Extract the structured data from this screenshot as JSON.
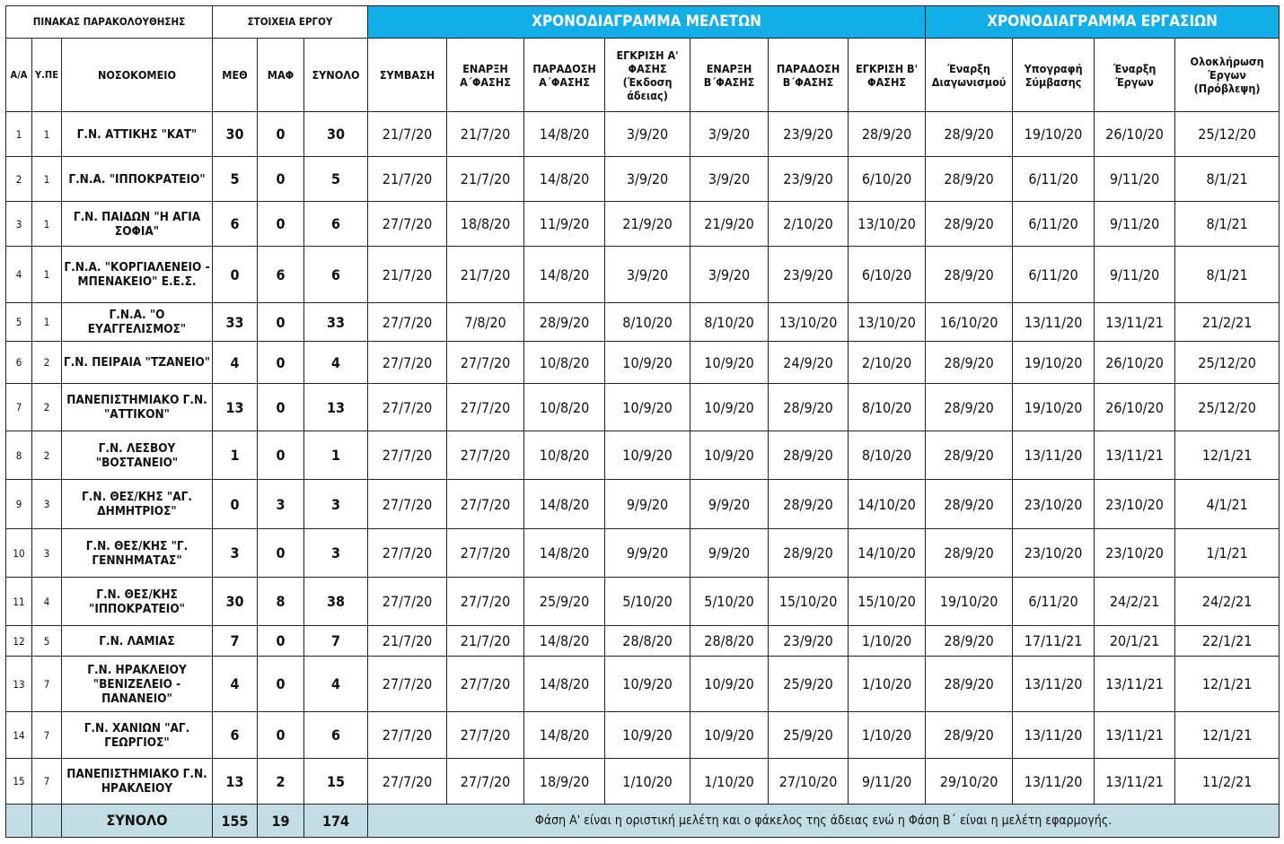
{
  "header": {
    "monitoring": "ΠΙΝΑΚΑΣ ΠΑΡΑΚΟΛΟΥΘΗΣΗΣ",
    "project": "ΣΤΟΙΧΕΙΑ ΕΡΓΟΥ",
    "studies": "ΧΡΟΝΟΔΙΑΓΡΑΜΜΑ ΜΕΛΕΤΩΝ",
    "works": "ΧΡΟΝΟΔΙΑΓΡΑΜΜΑ ΕΡΓΑΣΙΩΝ",
    "accent_color": "#12aee8"
  },
  "columns": [
    "Α/Α",
    "Υ.ΠΕ",
    "ΝΟΣΟΚΟΜΕΙΟ",
    "ΜΕΘ",
    "ΜΑΦ",
    "ΣΥΝΟΛΟ",
    "ΣΥΜΒΑΣΗ",
    "ΕΝΑΡΞΗ Α΄ΦΑΣΗΣ",
    "ΠΑΡΑΔΟΣΗ Α΄ΦΑΣΗΣ",
    "ΕΓΚΡΙΣΗ Α' ΦΑΣΗΣ (Έκδοση άδειας)",
    "ΕΝΑΡΞΗ Β΄ΦΑΣΗΣ",
    "ΠΑΡΑΔΟΣΗ Β΄ΦΑΣΗΣ",
    "ΕΓΚΡΙΣΗ Β' ΦΑΣΗΣ",
    "Έναρξη Διαγωνισμού",
    "Υπογραφή Σύμβασης",
    "Έναρξη Έργων",
    "Ολοκλήρωση Έργων (Πρόβλεψη)"
  ],
  "rows": [
    [
      "1",
      "1",
      "Γ.Ν. ΑΤΤΙΚΗΣ \"ΚΑΤ\"",
      "30",
      "0",
      "30",
      "21/7/20",
      "21/7/20",
      "14/8/20",
      "3/9/20",
      "3/9/20",
      "23/9/20",
      "28/9/20",
      "28/9/20",
      "19/10/20",
      "26/10/20",
      "25/12/20"
    ],
    [
      "2",
      "1",
      "Γ.Ν.Α. \"ΙΠΠΟΚΡΑΤΕΙΟ\"",
      "5",
      "0",
      "5",
      "21/7/20",
      "21/7/20",
      "14/8/20",
      "3/9/20",
      "3/9/20",
      "23/9/20",
      "6/10/20",
      "28/9/20",
      "6/11/20",
      "9/11/20",
      "8/1/21"
    ],
    [
      "3",
      "1",
      "Γ.Ν. ΠΑΙΔΩΝ \"Η ΑΓΙΑ ΣΟΦΙΑ\"",
      "6",
      "0",
      "6",
      "27/7/20",
      "18/8/20",
      "11/9/20",
      "21/9/20",
      "21/9/20",
      "2/10/20",
      "13/10/20",
      "28/9/20",
      "6/11/20",
      "9/11/20",
      "8/1/21"
    ],
    [
      "4",
      "1",
      "Γ.Ν.Α. \"ΚΟΡΓΙΑΛΕΝΕΙΟ - ΜΠΕΝΑΚΕΙΟ\" Ε.Ε.Σ.",
      "0",
      "6",
      "6",
      "21/7/20",
      "21/7/20",
      "14/8/20",
      "3/9/20",
      "3/9/20",
      "23/9/20",
      "6/10/20",
      "28/9/20",
      "6/11/20",
      "9/11/20",
      "8/1/21"
    ],
    [
      "5",
      "1",
      "Γ.Ν.Α. \"Ο ΕΥΑΓΓΕΛΙΣΜΟΣ\"",
      "33",
      "0",
      "33",
      "27/7/20",
      "7/8/20",
      "28/9/20",
      "8/10/20",
      "8/10/20",
      "13/10/20",
      "13/10/20",
      "16/10/20",
      "13/11/20",
      "13/11/21",
      "21/2/21"
    ],
    [
      "6",
      "2",
      "Γ.Ν. ΠΕΙΡΑΙΑ \"ΤΖΑΝΕΙΟ\"",
      "4",
      "0",
      "4",
      "27/7/20",
      "27/7/20",
      "10/8/20",
      "10/9/20",
      "10/9/20",
      "24/9/20",
      "2/10/20",
      "28/9/20",
      "19/10/20",
      "26/10/20",
      "25/12/20"
    ],
    [
      "7",
      "2",
      "ΠΑΝΕΠΙΣΤΗΜΙΑΚΟ Γ.Ν. \"ΑΤΤΙΚΟΝ\"",
      "13",
      "0",
      "13",
      "27/7/20",
      "27/7/20",
      "10/8/20",
      "10/9/20",
      "10/9/20",
      "28/9/20",
      "8/10/20",
      "28/9/20",
      "19/10/20",
      "26/10/20",
      "25/12/20"
    ],
    [
      "8",
      "2",
      "Γ.Ν. ΛΕΣΒΟΥ \"ΒΟΣΤΑΝΕΙΟ\"",
      "1",
      "0",
      "1",
      "27/7/20",
      "27/7/20",
      "10/8/20",
      "10/9/20",
      "10/9/20",
      "28/9/20",
      "8/10/20",
      "28/9/20",
      "13/11/20",
      "13/11/21",
      "12/1/21"
    ],
    [
      "9",
      "3",
      "Γ.Ν. ΘΕΣ/ΚΗΣ \"ΑΓ. ΔΗΜΗΤΡΙΟΣ\"",
      "0",
      "3",
      "3",
      "27/7/20",
      "27/7/20",
      "14/8/20",
      "9/9/20",
      "9/9/20",
      "28/9/20",
      "14/10/20",
      "28/9/20",
      "23/10/20",
      "23/10/20",
      "4/1/21"
    ],
    [
      "10",
      "3",
      "Γ.Ν. ΘΕΣ/ΚΗΣ \"Γ. ΓΕΝΝΗΜΑΤΑΣ\"",
      "3",
      "0",
      "3",
      "27/7/20",
      "27/7/20",
      "14/8/20",
      "9/9/20",
      "9/9/20",
      "28/9/20",
      "14/10/20",
      "28/9/20",
      "23/10/20",
      "23/10/20",
      "1/1/21"
    ],
    [
      "11",
      "4",
      "Γ.Ν. ΘΕΣ/ΚΗΣ \"ΙΠΠΟΚΡΑΤΕΙΟ\"",
      "30",
      "8",
      "38",
      "27/7/20",
      "27/7/20",
      "25/9/20",
      "5/10/20",
      "5/10/20",
      "15/10/20",
      "15/10/20",
      "19/10/20",
      "6/11/20",
      "24/2/21",
      "24/2/21"
    ],
    [
      "12",
      "5",
      "Γ.Ν. ΛΑΜΙΑΣ",
      "7",
      "0",
      "7",
      "21/7/20",
      "21/7/20",
      "14/8/20",
      "28/8/20",
      "28/8/20",
      "23/9/20",
      "1/10/20",
      "28/9/20",
      "17/11/21",
      "20/1/21",
      "22/1/21"
    ],
    [
      "13",
      "7",
      "Γ.Ν. ΗΡΑΚΛΕΙΟΥ \"ΒΕΝΙΖΕΛΕΙΟ - ΠΑΝΑΝΕΙΟ\"",
      "4",
      "0",
      "4",
      "27/7/20",
      "27/7/20",
      "14/8/20",
      "10/9/20",
      "10/9/20",
      "25/9/20",
      "1/10/20",
      "28/9/20",
      "13/11/20",
      "13/11/21",
      "12/1/21"
    ],
    [
      "14",
      "7",
      "Γ.Ν. ΧΑΝΙΩΝ \"ΑΓ. ΓΕΩΡΓΙΟΣ\"",
      "6",
      "0",
      "6",
      "27/7/20",
      "27/7/20",
      "14/8/20",
      "10/9/20",
      "10/9/20",
      "25/9/20",
      "1/10/20",
      "28/9/20",
      "13/11/20",
      "13/11/21",
      "12/1/21"
    ],
    [
      "15",
      "7",
      "ΠΑΝΕΠΙΣΤΗΜΙΑΚΟ Γ.Ν. ΗΡΑΚΛΕΙΟΥ",
      "13",
      "2",
      "15",
      "27/7/20",
      "27/7/20",
      "18/9/20",
      "1/10/20",
      "1/10/20",
      "27/10/20",
      "9/11/20",
      "29/10/20",
      "13/11/20",
      "13/11/21",
      "11/2/21"
    ]
  ],
  "total": {
    "label": "ΣΥΝΟΛΟ",
    "meth": "155",
    "maf": "19",
    "sum": "174",
    "note": "Φάση Α' είναι η οριστική μελέτη και ο φάκελος της άδειας ενώ η Φάση Β΄ είναι η μελέτη εφαρμογής.",
    "color": "#c3dde4"
  }
}
